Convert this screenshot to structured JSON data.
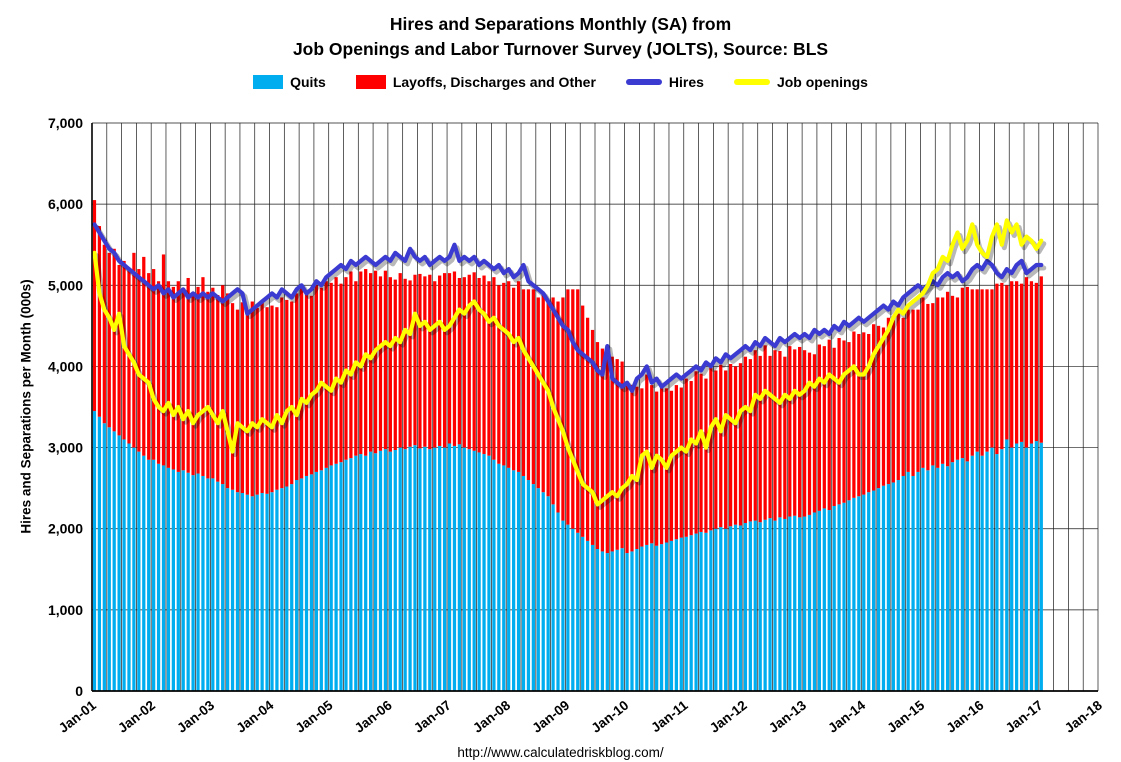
{
  "chart_data": {
    "type": "bar",
    "subtype": "stacked monthly bars with line overlays",
    "title_line1": "Hires and Separations Monthly (SA) from",
    "title_line2": "Job Openings and Labor Turnover Survey (JOLTS), Source: BLS",
    "ylabel": "Hires and Separations per Month (000s)",
    "source_url": "http://www.calculatedriskblog.com/",
    "ylim": [
      0,
      7000
    ],
    "y_ticks": [
      "0",
      "1,000",
      "2,000",
      "3,000",
      "4,000",
      "5,000",
      "6,000",
      "7,000"
    ],
    "x_start": "2001-01",
    "x_interval": "monthly",
    "x_count": 193,
    "x_domain_months": 204,
    "x_ticks": [
      "Jan-01",
      "Jan-02",
      "Jan-03",
      "Jan-04",
      "Jan-05",
      "Jan-06",
      "Jan-07",
      "Jan-08",
      "Jan-09",
      "Jan-10",
      "Jan-11",
      "Jan-12",
      "Jan-13",
      "Jan-14",
      "Jan-15",
      "Jan-16",
      "Jan-17",
      "Jan-18"
    ],
    "grid": "horizontal every 1000, vertical quarterly",
    "legend_position": "top",
    "series": [
      {
        "name": "Quits",
        "plot_as": "stacked-bar",
        "color": "#00AEEF",
        "values": [
          3450,
          3380,
          3300,
          3250,
          3200,
          3150,
          3100,
          3050,
          3000,
          2950,
          2900,
          2850,
          2850,
          2800,
          2780,
          2750,
          2730,
          2700,
          2720,
          2690,
          2660,
          2680,
          2650,
          2620,
          2620,
          2580,
          2550,
          2500,
          2480,
          2450,
          2440,
          2420,
          2400,
          2420,
          2440,
          2430,
          2450,
          2480,
          2500,
          2520,
          2550,
          2600,
          2620,
          2650,
          2670,
          2700,
          2720,
          2750,
          2780,
          2800,
          2820,
          2850,
          2870,
          2900,
          2920,
          2900,
          2950,
          2930,
          2960,
          2980,
          2950,
          2970,
          3000,
          2980,
          3010,
          3030,
          2990,
          3010,
          2980,
          3000,
          3020,
          3000,
          3050,
          3020,
          3040,
          3000,
          2980,
          2960,
          2940,
          2920,
          2900,
          2850,
          2800,
          2780,
          2750,
          2720,
          2700,
          2650,
          2600,
          2550,
          2500,
          2450,
          2400,
          2300,
          2200,
          2100,
          2050,
          2000,
          1950,
          1900,
          1850,
          1800,
          1750,
          1720,
          1700,
          1720,
          1740,
          1760,
          1700,
          1720,
          1750,
          1780,
          1800,
          1820,
          1790,
          1810,
          1830,
          1850,
          1870,
          1890,
          1900,
          1920,
          1940,
          1960,
          1950,
          1980,
          2000,
          2020,
          2000,
          2030,
          2050,
          2040,
          2070,
          2090,
          2100,
          2080,
          2110,
          2130,
          2100,
          2140,
          2120,
          2150,
          2160,
          2140,
          2150,
          2170,
          2200,
          2220,
          2250,
          2230,
          2280,
          2300,
          2320,
          2350,
          2380,
          2400,
          2420,
          2450,
          2470,
          2500,
          2530,
          2550,
          2570,
          2600,
          2650,
          2700,
          2650,
          2700,
          2750,
          2720,
          2780,
          2750,
          2800,
          2770,
          2820,
          2850,
          2870,
          2830,
          2900,
          2950,
          2900,
          2950,
          3000,
          2920,
          2980,
          3100,
          3000,
          3050,
          3070,
          3000,
          3050,
          3080,
          3060
        ]
      },
      {
        "name": "Layoffs, Discharges and Other",
        "plot_as": "stacked-bar",
        "color": "#FF0000",
        "values": [
          2600,
          2350,
          2200,
          2150,
          2250,
          2100,
          2200,
          2150,
          2400,
          2250,
          2450,
          2300,
          2350,
          2250,
          2600,
          2300,
          2250,
          2350,
          2200,
          2400,
          2250,
          2300,
          2450,
          2300,
          2350,
          2300,
          2450,
          2400,
          2300,
          2250,
          2350,
          2250,
          2400,
          2300,
          2350,
          2300,
          2300,
          2250,
          2350,
          2300,
          2250,
          2300,
          2350,
          2250,
          2200,
          2300,
          2250,
          2300,
          2250,
          2300,
          2200,
          2250,
          2300,
          2150,
          2250,
          2300,
          2200,
          2250,
          2150,
          2200,
          2150,
          2100,
          2150,
          2100,
          2050,
          2100,
          2150,
          2100,
          2150,
          2050,
          2100,
          2150,
          2100,
          2150,
          2050,
          2100,
          2150,
          2200,
          2150,
          2200,
          2150,
          2250,
          2200,
          2250,
          2300,
          2250,
          2350,
          2300,
          2350,
          2400,
          2350,
          2450,
          2400,
          2550,
          2600,
          2750,
          2900,
          2950,
          3000,
          2850,
          2750,
          2650,
          2550,
          2500,
          2450,
          2400,
          2350,
          2300,
          2100,
          2050,
          2000,
          1950,
          2100,
          1950,
          1900,
          1950,
          1900,
          1850,
          1900,
          1850,
          1950,
          1900,
          2000,
          1950,
          1900,
          2000,
          1950,
          2000,
          1950,
          2000,
          1950,
          2000,
          2050,
          2000,
          2100,
          2050,
          2150,
          2000,
          2100,
          2050,
          2000,
          2100,
          2050,
          2100,
          2050,
          2000,
          1950,
          2050,
          2000,
          2100,
          1950,
          2050,
          2000,
          1950,
          2050,
          2000,
          2000,
          1950,
          2050,
          2000,
          1950,
          2050,
          2000,
          2050,
          1950,
          2000,
          2050,
          2000,
          2100,
          2050,
          2000,
          2100,
          2050,
          2150,
          2050,
          2000,
          2100,
          2150,
          2050,
          2000,
          2050,
          2000,
          1950,
          2100,
          2050,
          1900,
          2050,
          2000,
          1950,
          2100,
          2000,
          1950,
          2050
        ]
      },
      {
        "name": "Hires",
        "plot_as": "line",
        "color": "#3B3BD1",
        "values": [
          5750,
          5650,
          5550,
          5450,
          5400,
          5300,
          5250,
          5200,
          5150,
          5100,
          5050,
          5000,
          4950,
          5000,
          4900,
          4950,
          4850,
          4900,
          4950,
          4850,
          4900,
          4850,
          4900,
          4850,
          4900,
          4850,
          4800,
          4850,
          4900,
          4950,
          4900,
          4650,
          4700,
          4750,
          4800,
          4850,
          4900,
          4850,
          4950,
          4900,
          4850,
          4950,
          5000,
          4900,
          4950,
          5050,
          5000,
          5100,
          5150,
          5200,
          5250,
          5200,
          5300,
          5250,
          5300,
          5350,
          5300,
          5250,
          5300,
          5350,
          5300,
          5400,
          5350,
          5300,
          5450,
          5350,
          5300,
          5350,
          5250,
          5300,
          5350,
          5300,
          5350,
          5500,
          5300,
          5350,
          5300,
          5350,
          5250,
          5300,
          5250,
          5200,
          5250,
          5150,
          5200,
          5100,
          5150,
          5250,
          5050,
          5000,
          4950,
          4900,
          4800,
          4700,
          4600,
          4500,
          4450,
          4300,
          4200,
          4150,
          4100,
          4050,
          3950,
          3900,
          4250,
          3850,
          3800,
          3750,
          3800,
          3700,
          3850,
          3900,
          4000,
          3800,
          3850,
          3750,
          3800,
          3850,
          3900,
          3850,
          3900,
          3950,
          4000,
          3950,
          4050,
          4000,
          4100,
          4050,
          4150,
          4100,
          4150,
          4200,
          4250,
          4200,
          4300,
          4250,
          4350,
          4300,
          4250,
          4350,
          4300,
          4350,
          4400,
          4350,
          4400,
          4350,
          4450,
          4400,
          4450,
          4400,
          4500,
          4450,
          4550,
          4500,
          4550,
          4600,
          4550,
          4600,
          4650,
          4700,
          4750,
          4700,
          4800,
          4750,
          4850,
          4900,
          4950,
          5000,
          4950,
          5000,
          5050,
          5000,
          5100,
          5150,
          5100,
          5150,
          5050,
          5100,
          5200,
          5250,
          5200,
          5300,
          5250,
          5150,
          5100,
          5200,
          5150,
          5250,
          5300,
          5150,
          5200,
          5250,
          5250
        ]
      },
      {
        "name": "Job openings",
        "plot_as": "line",
        "color": "#FFFF00",
        "values": [
          5400,
          4900,
          4700,
          4600,
          4450,
          4650,
          4250,
          4150,
          4050,
          3900,
          3850,
          3800,
          3600,
          3500,
          3450,
          3550,
          3400,
          3500,
          3350,
          3450,
          3300,
          3400,
          3450,
          3500,
          3400,
          3300,
          3450,
          3200,
          2950,
          3300,
          3250,
          3200,
          3300,
          3250,
          3350,
          3300,
          3250,
          3400,
          3300,
          3450,
          3500,
          3400,
          3600,
          3550,
          3650,
          3700,
          3800,
          3750,
          3700,
          3850,
          3800,
          3950,
          3900,
          4050,
          4000,
          4150,
          4100,
          4200,
          4250,
          4300,
          4250,
          4350,
          4300,
          4450,
          4400,
          4650,
          4500,
          4550,
          4450,
          4500,
          4550,
          4450,
          4500,
          4600,
          4700,
          4650,
          4750,
          4800,
          4700,
          4650,
          4550,
          4600,
          4500,
          4450,
          4400,
          4300,
          4350,
          4200,
          4100,
          4000,
          3900,
          3800,
          3700,
          3500,
          3350,
          3200,
          3000,
          2850,
          2700,
          2550,
          2500,
          2450,
          2300,
          2350,
          2400,
          2450,
          2400,
          2500,
          2550,
          2650,
          2600,
          2900,
          2950,
          2750,
          2900,
          2850,
          2750,
          2900,
          2950,
          3000,
          2950,
          3100,
          3050,
          3200,
          3000,
          3250,
          3350,
          3200,
          3400,
          3350,
          3300,
          3450,
          3500,
          3450,
          3650,
          3600,
          3700,
          3650,
          3600,
          3550,
          3650,
          3600,
          3700,
          3650,
          3700,
          3800,
          3750,
          3850,
          3800,
          3900,
          3850,
          3800,
          3900,
          3950,
          4000,
          3900,
          3900,
          4000,
          4150,
          4250,
          4350,
          4450,
          4600,
          4700,
          4650,
          4750,
          4800,
          4850,
          4900,
          5000,
          5150,
          5200,
          5350,
          5300,
          5500,
          5650,
          5450,
          5550,
          5750,
          5500,
          5400,
          5350,
          5600,
          5750,
          5500,
          5800,
          5650,
          5750,
          5500,
          5600,
          5550,
          5450,
          5550
        ]
      }
    ]
  }
}
